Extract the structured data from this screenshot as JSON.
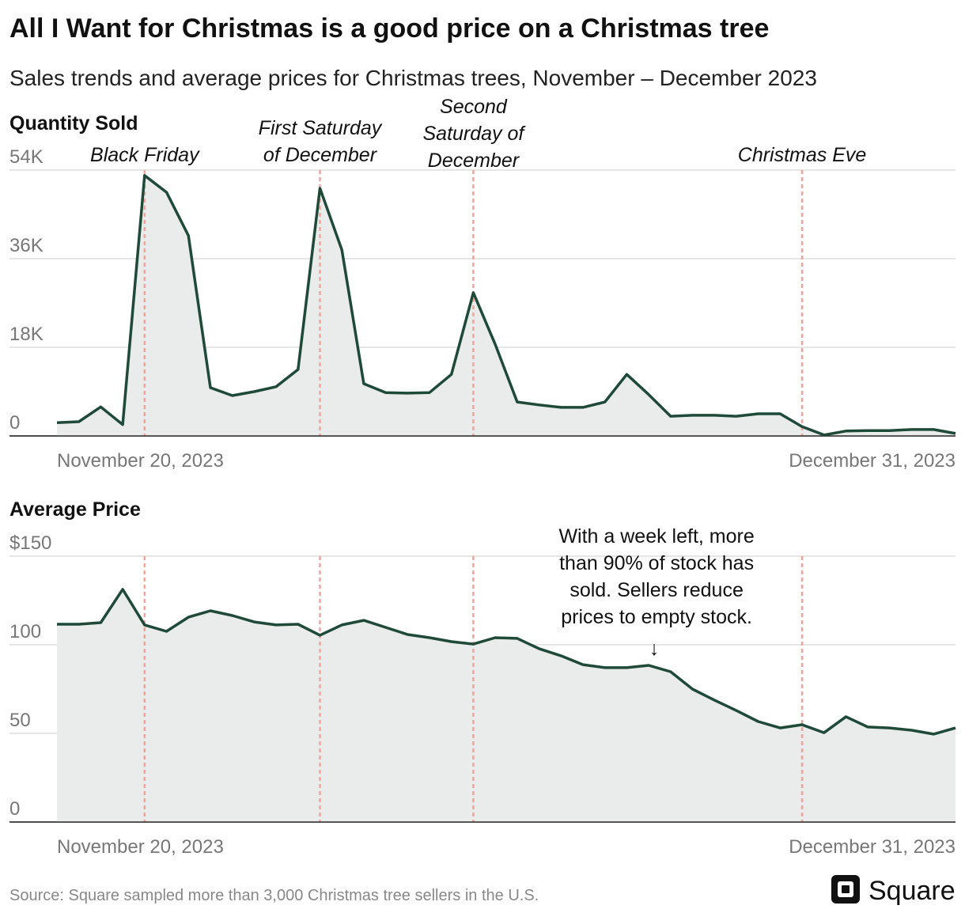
{
  "header": {
    "title": "All I Want for Christmas is a good price on a Christmas tree",
    "subtitle": "Sales trends and average prices for Christmas trees, November – December 2023"
  },
  "footer": {
    "source": "Source: Square sampled more than 3,000 Christmas tree sellers in the U.S.",
    "logo_text": "Square"
  },
  "colors": {
    "line": "#1f4a3a",
    "area": "#e9ecea",
    "event_line": "#f4a29c",
    "grid": "#dddddd"
  },
  "chart_data": [
    {
      "type": "area",
      "title": "Quantity Sold",
      "x_start": "2023-11-20",
      "x_end": "2023-12-31",
      "x_tick_labels": [
        "November 20, 2023",
        "December 31, 2023"
      ],
      "y_ticks": [
        0,
        18000,
        36000,
        54000
      ],
      "y_tick_labels": [
        "0",
        "18K",
        "36K",
        "54K"
      ],
      "ylim": [
        0,
        54000
      ],
      "grid": true,
      "x": [
        "2023-11-20",
        "2023-11-21",
        "2023-11-22",
        "2023-11-23",
        "2023-11-24",
        "2023-11-25",
        "2023-11-26",
        "2023-11-27",
        "2023-11-28",
        "2023-11-29",
        "2023-11-30",
        "2023-12-01",
        "2023-12-02",
        "2023-12-03",
        "2023-12-04",
        "2023-12-05",
        "2023-12-06",
        "2023-12-07",
        "2023-12-08",
        "2023-12-09",
        "2023-12-10",
        "2023-12-11",
        "2023-12-12",
        "2023-12-13",
        "2023-12-14",
        "2023-12-15",
        "2023-12-16",
        "2023-12-17",
        "2023-12-18",
        "2023-12-19",
        "2023-12-20",
        "2023-12-21",
        "2023-12-22",
        "2023-12-23",
        "2023-12-24",
        "2023-12-25",
        "2023-12-26",
        "2023-12-27",
        "2023-12-28",
        "2023-12-29",
        "2023-12-30",
        "2023-12-31"
      ],
      "values": [
        2700,
        2900,
        5900,
        2300,
        52900,
        49500,
        40700,
        9800,
        8200,
        9000,
        10000,
        13500,
        50300,
        37800,
        10600,
        8800,
        8700,
        8800,
        12500,
        29100,
        18600,
        6900,
        6300,
        5800,
        5800,
        6900,
        12500,
        8400,
        4000,
        4200,
        4200,
        4000,
        4500,
        4500,
        1900,
        200,
        1000,
        1100,
        1100,
        1300,
        1300,
        500
      ],
      "events": [
        {
          "date": "2023-11-24",
          "lines": [
            "Black Friday"
          ]
        },
        {
          "date": "2023-12-02",
          "lines": [
            "First Saturday",
            "of December"
          ]
        },
        {
          "date": "2023-12-09",
          "lines": [
            "Second",
            "Saturday of",
            "December"
          ]
        },
        {
          "date": "2023-12-24",
          "lines": [
            "Christmas Eve"
          ]
        }
      ]
    },
    {
      "type": "area",
      "title": "Average Price",
      "x_start": "2023-11-20",
      "x_end": "2023-12-31",
      "x_tick_labels": [
        "November 20, 2023",
        "December 31, 2023"
      ],
      "y_ticks": [
        0,
        50,
        100,
        150
      ],
      "y_tick_labels": [
        "0",
        "50",
        "100",
        "$150"
      ],
      "ylim": [
        0,
        150
      ],
      "grid": true,
      "values": [
        111.6,
        111.6,
        112.5,
        131.3,
        111.2,
        107.6,
        115.6,
        119.2,
        116.5,
        112.9,
        111.2,
        111.6,
        105.4,
        111.2,
        113.8,
        109.8,
        105.8,
        104.0,
        101.8,
        100.4,
        104.0,
        103.6,
        97.8,
        93.8,
        88.8,
        87.1,
        87.1,
        88.4,
        84.8,
        75.0,
        68.8,
        62.9,
        56.7,
        53.1,
        54.9,
        50.4,
        59.4,
        53.6,
        53.1,
        51.8,
        49.6,
        53.1
      ],
      "event_dates": [
        "2023-11-24",
        "2023-12-02",
        "2023-12-09",
        "2023-12-24"
      ],
      "annotation": {
        "date": "2023-12-17",
        "lines": [
          "With a week left, more",
          "than 90% of stock has",
          "sold. Sellers reduce",
          "prices to empty stock."
        ],
        "arrow": "↓"
      }
    }
  ]
}
